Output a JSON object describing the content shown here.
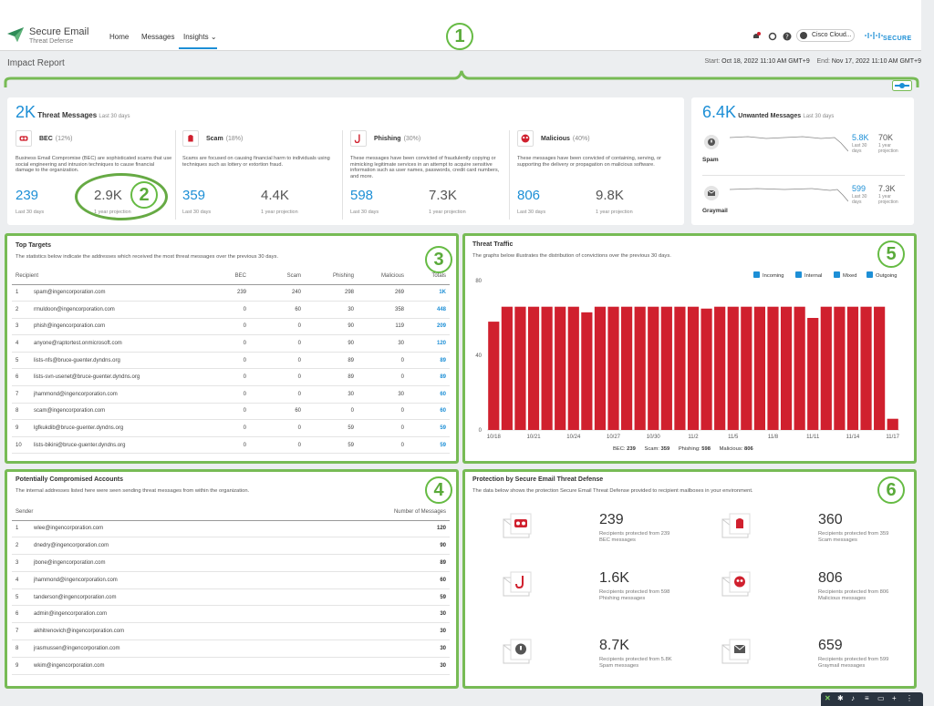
{
  "brand": {
    "name": "Secure Email",
    "sub": "Threat Defense"
  },
  "nav": {
    "items": [
      "Home",
      "Messages",
      "Insights"
    ],
    "active": "Insights"
  },
  "header": {
    "cloud_label": "Cisco Cloud...",
    "secure_label": "SECURE"
  },
  "report": {
    "title": "Impact Report",
    "start_label": "Start:",
    "start": "Oct 18, 2022 11:10 AM GMT+9",
    "end_label": "End:",
    "end": "Nov 17, 2022 11:10 AM GMT+9"
  },
  "annotations": [
    "1",
    "2",
    "3",
    "4",
    "5",
    "6"
  ],
  "threat": {
    "total": "2K",
    "label": "Threat Messages",
    "period": "Last 30 days",
    "categories": [
      {
        "name": "BEC",
        "pct": "(12%)",
        "desc": "Business Email Compromise (BEC) are sophisticated scams that use social engineering and intrusion techniques to cause financial damage to the organization.",
        "count": "239",
        "count_label": "Last 30 days",
        "projection": "2.9K",
        "projection_label": "1 year projection"
      },
      {
        "name": "Scam",
        "pct": "(18%)",
        "desc": "Scams are focused on causing financial harm to individuals using techniques such as lottery or extortion fraud.",
        "count": "359",
        "count_label": "Last 30 days",
        "projection": "4.4K",
        "projection_label": "1 year projection"
      },
      {
        "name": "Phishing",
        "pct": "(30%)",
        "desc": "These messages have been convicted of fraudulently copying or mimicking legitimate services in an attempt to acquire sensitive information such as user names, passwords, credit card numbers, and more.",
        "count": "598",
        "count_label": "Last 30 days",
        "projection": "7.3K",
        "projection_label": "1 year projection"
      },
      {
        "name": "Malicious",
        "pct": "(40%)",
        "desc": "These messages have been convicted of containing, serving, or supporting the delivery or propagation on malicious software.",
        "count": "806",
        "count_label": "Last 30 days",
        "projection": "9.8K",
        "projection_label": "1 year projection"
      }
    ]
  },
  "unwanted": {
    "total": "6.4K",
    "label": "Unwanted Messages",
    "period": "Last 30 days",
    "rows": [
      {
        "name": "Spam",
        "count": "5.8K",
        "count_label": "Last 30 days",
        "projection": "70K",
        "projection_label": "1 year projection"
      },
      {
        "name": "Graymail",
        "count": "599",
        "count_label": "Last 30 days",
        "projection": "7.3K",
        "projection_label": "1 year projection"
      }
    ]
  },
  "top_targets": {
    "title": "Top Targets",
    "desc": "The statistics below indicate the addresses which received the most threat messages over the previous 30 days.",
    "columns": [
      "Recipient",
      "BEC",
      "Scam",
      "Phishing",
      "Malicious",
      "Totals"
    ],
    "rows": [
      [
        "1",
        "spam@ingencorporation.com",
        "239",
        "240",
        "298",
        "269",
        "1K"
      ],
      [
        "2",
        "rmuldoon@ingencorporation.com",
        "0",
        "60",
        "30",
        "358",
        "448"
      ],
      [
        "3",
        "phish@ingencorporation.com",
        "0",
        "0",
        "90",
        "119",
        "209"
      ],
      [
        "4",
        "anyone@raptortest.onmicrosoft.com",
        "0",
        "0",
        "90",
        "30",
        "120"
      ],
      [
        "5",
        "lists-nfs@bruce-guenter.dyndns.org",
        "0",
        "0",
        "89",
        "0",
        "89"
      ],
      [
        "6",
        "lists-svn-usenet@bruce-guenter.dyndns.org",
        "0",
        "0",
        "89",
        "0",
        "89"
      ],
      [
        "7",
        "jhammond@ingencorporation.com",
        "0",
        "0",
        "30",
        "30",
        "60"
      ],
      [
        "8",
        "scam@ingencorporation.com",
        "0",
        "60",
        "0",
        "0",
        "60"
      ],
      [
        "9",
        "lgfkukdib@bruce-guenter.dyndns.org",
        "0",
        "0",
        "59",
        "0",
        "59"
      ],
      [
        "10",
        "lists-bikini@bruce-guenter.dyndns.org",
        "0",
        "0",
        "59",
        "0",
        "59"
      ]
    ]
  },
  "compromised": {
    "title": "Potentially Compromised Accounts",
    "desc": "The internal addresses listed here were seen sending threat messages from within the organization.",
    "columns": [
      "Sender",
      "Number of Messages"
    ],
    "rows": [
      [
        "1",
        "wlee@ingencorporation.com",
        "120"
      ],
      [
        "2",
        "dnedry@ingencorporation.com",
        "90"
      ],
      [
        "3",
        "jbone@ingencorporation.com",
        "89"
      ],
      [
        "4",
        "jhammond@ingencorporation.com",
        "60"
      ],
      [
        "5",
        "tanderson@ingencorporation.com",
        "59"
      ],
      [
        "6",
        "admin@ingencorporation.com",
        "30"
      ],
      [
        "7",
        "akhitrenovich@ingencorporation.com",
        "30"
      ],
      [
        "8",
        "jrasmussen@ingencorporation.com",
        "30"
      ],
      [
        "9",
        "wkim@ingencorporation.com",
        "30"
      ]
    ]
  },
  "traffic": {
    "title": "Threat Traffic",
    "desc": "The graphs below illustrates the distribution of convictions over the previous 30 days.",
    "legend": [
      "Incoming",
      "Internal",
      "Mixed",
      "Outgoing"
    ],
    "footer": [
      {
        "label": "BEC:",
        "value": "239"
      },
      {
        "label": "Scam:",
        "value": "359"
      },
      {
        "label": "Phishing:",
        "value": "598"
      },
      {
        "label": "Malicious:",
        "value": "806"
      }
    ]
  },
  "chart_data": {
    "type": "bar",
    "categories": [
      "10/18",
      "10/19",
      "10/20",
      "10/21",
      "10/22",
      "10/23",
      "10/24",
      "10/25",
      "10/26",
      "10/27",
      "10/28",
      "10/29",
      "10/30",
      "10/31",
      "11/1",
      "11/2",
      "11/3",
      "11/4",
      "11/5",
      "11/6",
      "11/7",
      "11/8",
      "11/9",
      "11/10",
      "11/11",
      "11/12",
      "11/13",
      "11/14",
      "11/15",
      "11/16",
      "11/17"
    ],
    "x_tick_labels": [
      "10/18",
      "10/21",
      "10/24",
      "10/27",
      "10/30",
      "11/2",
      "11/5",
      "11/8",
      "11/11",
      "11/14",
      "11/17"
    ],
    "values": [
      58,
      66,
      66,
      66,
      66,
      66,
      66,
      63,
      66,
      66,
      66,
      66,
      66,
      66,
      66,
      66,
      65,
      66,
      66,
      66,
      66,
      66,
      66,
      66,
      60,
      66,
      66,
      66,
      66,
      66,
      6
    ],
    "ylim": [
      0,
      80
    ],
    "y_ticks": [
      0,
      40,
      80
    ],
    "color": "#d0202e",
    "grid": false
  },
  "protection": {
    "title": "Protection by Secure Email Threat Defense",
    "desc": "The data below shows the protection Secure Email Threat Defense provided to recipient mailboxes in your environment.",
    "items": [
      {
        "icon": "bec-icon",
        "value": "239",
        "desc": "Recipients protected from 239 BEC messages"
      },
      {
        "icon": "scam-icon",
        "value": "360",
        "desc": "Recipients protected from 359 Scam messages"
      },
      {
        "icon": "phishing-icon",
        "value": "1.6K",
        "desc": "Recipients protected from 598 Phishing messages"
      },
      {
        "icon": "malicious-icon",
        "value": "806",
        "desc": "Recipients protected from 806 Malicious messages"
      },
      {
        "icon": "spam-icon",
        "value": "8.7K",
        "desc": "Recipients protected from 5.8K Spam messages"
      },
      {
        "icon": "graymail-icon",
        "value": "659",
        "desc": "Recipients protected from 599 Graymail messages"
      }
    ]
  }
}
